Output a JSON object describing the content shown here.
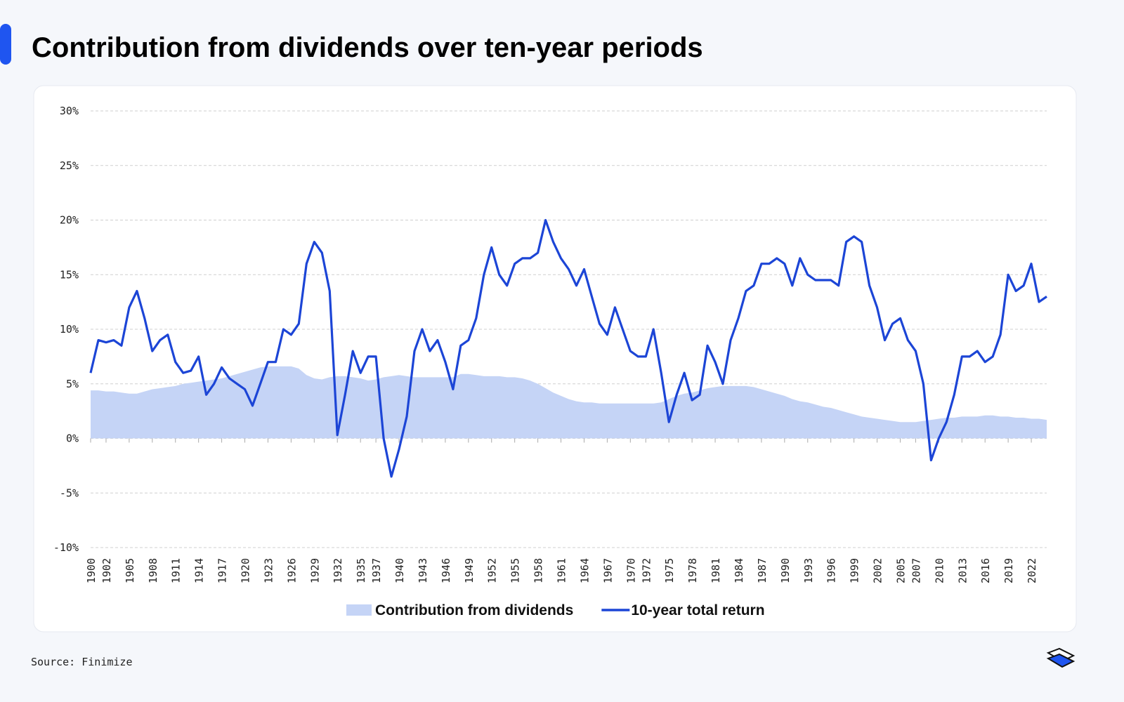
{
  "chart_data": {
    "type": "line",
    "title": "Contribution from dividends over ten-year periods",
    "source": "Source: Finimize",
    "x": [
      1900,
      1901,
      1902,
      1903,
      1904,
      1905,
      1906,
      1907,
      1908,
      1909,
      1910,
      1911,
      1912,
      1913,
      1914,
      1915,
      1916,
      1917,
      1918,
      1919,
      1920,
      1921,
      1922,
      1923,
      1924,
      1925,
      1926,
      1927,
      1928,
      1929,
      1930,
      1931,
      1932,
      1933,
      1934,
      1935,
      1936,
      1937,
      1938,
      1939,
      1940,
      1941,
      1942,
      1943,
      1944,
      1945,
      1946,
      1947,
      1948,
      1949,
      1950,
      1951,
      1952,
      1953,
      1954,
      1955,
      1956,
      1957,
      1958,
      1959,
      1960,
      1961,
      1962,
      1963,
      1964,
      1965,
      1966,
      1967,
      1968,
      1969,
      1970,
      1971,
      1972,
      1973,
      1974,
      1975,
      1976,
      1977,
      1978,
      1979,
      1980,
      1981,
      1982,
      1983,
      1984,
      1985,
      1986,
      1987,
      1988,
      1989,
      1990,
      1991,
      1992,
      1993,
      1994,
      1995,
      1996,
      1997,
      1998,
      1999,
      2000,
      2001,
      2002,
      2003,
      2004,
      2005,
      2006,
      2007,
      2008,
      2009,
      2010,
      2011,
      2012,
      2013,
      2014,
      2015,
      2016,
      2017,
      2018,
      2019,
      2020,
      2021,
      2022,
      2023,
      2024
    ],
    "series": [
      {
        "name": "Contribution from dividends",
        "color": "#c5d4f6",
        "area": true,
        "values": [
          4.4,
          4.4,
          4.3,
          4.3,
          4.2,
          4.1,
          4.1,
          4.3,
          4.5,
          4.6,
          4.7,
          4.8,
          5,
          5.1,
          5.2,
          5.3,
          5.4,
          5.5,
          5.7,
          5.9,
          6.1,
          6.3,
          6.5,
          6.6,
          6.6,
          6.6,
          6.6,
          6.4,
          5.8,
          5.5,
          5.4,
          5.6,
          5.7,
          5.7,
          5.6,
          5.5,
          5.3,
          5.4,
          5.6,
          5.7,
          5.8,
          5.7,
          5.6,
          5.6,
          5.6,
          5.6,
          5.6,
          5.6,
          5.9,
          5.9,
          5.8,
          5.7,
          5.7,
          5.7,
          5.6,
          5.6,
          5.5,
          5.3,
          5,
          4.6,
          4.2,
          3.9,
          3.6,
          3.4,
          3.3,
          3.3,
          3.2,
          3.2,
          3.2,
          3.2,
          3.2,
          3.2,
          3.2,
          3.2,
          3.3,
          3.6,
          3.9,
          4.1,
          4.2,
          4.4,
          4.6,
          4.7,
          4.8,
          4.8,
          4.8,
          4.8,
          4.7,
          4.5,
          4.3,
          4.1,
          3.9,
          3.6,
          3.4,
          3.3,
          3.1,
          2.9,
          2.8,
          2.6,
          2.4,
          2.2,
          2,
          1.9,
          1.8,
          1.7,
          1.6,
          1.5,
          1.5,
          1.5,
          1.6,
          1.7,
          1.8,
          1.9,
          1.9,
          2,
          2,
          2,
          2.1,
          2.1,
          2,
          2,
          1.9,
          1.9,
          1.8,
          1.8,
          1.7
        ]
      },
      {
        "name": "10-year total return",
        "color": "#1c45d6",
        "area": false,
        "values": [
          6,
          9,
          8.8,
          9,
          8.5,
          12,
          13.5,
          11,
          8,
          9,
          9.5,
          7,
          6,
          6.2,
          7.5,
          4,
          5,
          6.5,
          5.5,
          5,
          4.5,
          3,
          5,
          7,
          7,
          10,
          9.5,
          10.5,
          16,
          18,
          17,
          13.5,
          0.3,
          4,
          8,
          6,
          7.5,
          7.5,
          0,
          -3.5,
          -1,
          2,
          8,
          10,
          8,
          9,
          7,
          4.5,
          8.5,
          9,
          11,
          15,
          17.5,
          15,
          14,
          16,
          16.5,
          16.5,
          17,
          20,
          18,
          16.5,
          15.5,
          14,
          15.5,
          13,
          10.5,
          9.5,
          12,
          10,
          8,
          7.5,
          7.5,
          10,
          6,
          1.5,
          4,
          6,
          3.5,
          4,
          8.5,
          7,
          5,
          9,
          11,
          13.5,
          14,
          16,
          16,
          16.5,
          16,
          14,
          16.5,
          15,
          14.5,
          14.5,
          14.5,
          14,
          18,
          18.5,
          18,
          14,
          12,
          9,
          10.5,
          11,
          9,
          8,
          5,
          -2,
          0,
          1.5,
          4,
          7.5,
          7.5,
          8,
          7,
          7.5,
          9.5,
          15,
          13.5,
          14,
          16,
          12.5,
          13
        ]
      }
    ],
    "xlim": [
      1900,
      2024
    ],
    "xticks": [
      1900,
      1902,
      1905,
      1908,
      1911,
      1914,
      1917,
      1920,
      1923,
      1926,
      1929,
      1932,
      1935,
      1937,
      1940,
      1943,
      1946,
      1949,
      1952,
      1955,
      1958,
      1961,
      1964,
      1967,
      1970,
      1972,
      1975,
      1978,
      1981,
      1984,
      1987,
      1990,
      1993,
      1996,
      1999,
      2002,
      2005,
      2007,
      2010,
      2013,
      2016,
      2019,
      2022
    ],
    "ylim": [
      -10,
      30
    ],
    "yticks": [
      {
        "value": -10,
        "label": "-10%"
      },
      {
        "value": -5,
        "label": "-5%"
      },
      {
        "value": 0,
        "label": "0%"
      },
      {
        "value": 5,
        "label": "5%"
      },
      {
        "value": 10,
        "label": "10%"
      },
      {
        "value": 15,
        "label": "15%"
      },
      {
        "value": 20,
        "label": "20%"
      },
      {
        "value": 25,
        "label": "25%"
      },
      {
        "value": 30,
        "label": "30%"
      }
    ],
    "grid": true
  }
}
